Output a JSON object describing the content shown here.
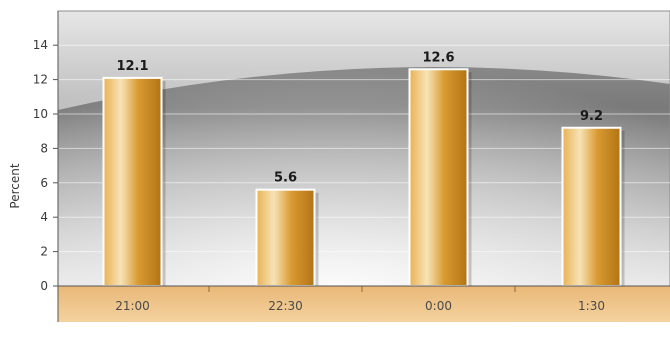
{
  "chart_data": {
    "type": "bar",
    "title": "",
    "xlabel": "",
    "ylabel": "Percent",
    "categories": [
      "21:00",
      "22:30",
      "0:00",
      "1:30"
    ],
    "values": [
      12.1,
      5.6,
      12.6,
      9.2
    ],
    "value_labels": [
      "12.1",
      "5.6",
      "12.6",
      "9.2"
    ],
    "ylim": [
      0,
      16
    ],
    "yticks": [
      0,
      2,
      4,
      6,
      8,
      10,
      12,
      14
    ],
    "grid": true,
    "legend": "none",
    "colors": {
      "bar": "#d4952a",
      "bar_light": "#f6e2b4",
      "bar_dark": "#b27414",
      "category_band": "#f0c78a",
      "background_light": "#eeeeee",
      "background_dark": "#8a8a8a"
    }
  }
}
